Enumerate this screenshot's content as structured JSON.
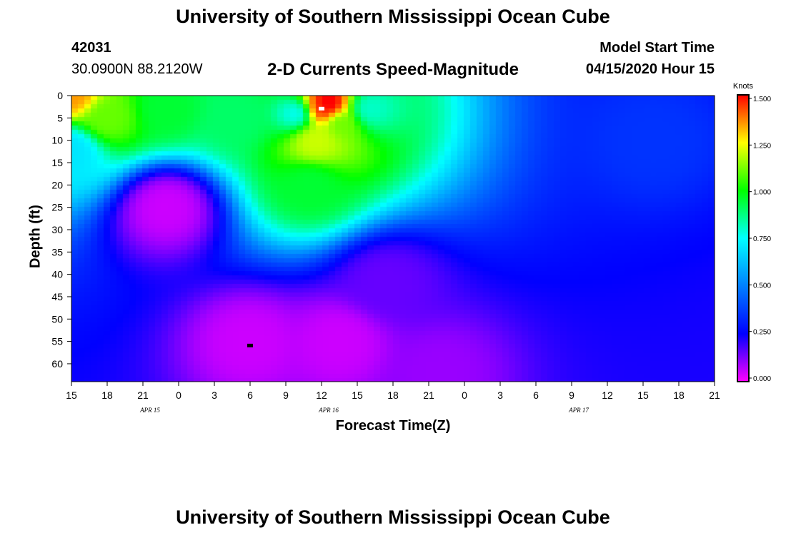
{
  "header": {
    "title_top": "University of Southern Mississippi Ocean Cube",
    "station_id": "42031",
    "location": "30.0900N 88.2120W",
    "subtitle": "2-D Currents Speed-Magnitude",
    "model_start_label": "Model Start Time",
    "model_start_value": "04/15/2020 Hour 15",
    "title_bottom": "University of Southern Mississippi Ocean Cube"
  },
  "chart_data": {
    "type": "heatmap",
    "title": "2-D Currents Speed-Magnitude",
    "xlabel": "Forecast Time(Z)",
    "ylabel": "Depth (ft)",
    "x_ticks": [
      "15",
      "18",
      "21",
      "0",
      "3",
      "6",
      "9",
      "12",
      "15",
      "18",
      "21",
      "0",
      "3",
      "6",
      "9",
      "12",
      "15",
      "18",
      "21"
    ],
    "x_range_hours": [
      0,
      54
    ],
    "y_ticks": [
      "0",
      "5",
      "10",
      "15",
      "20",
      "25",
      "30",
      "35",
      "40",
      "45",
      "50",
      "55",
      "60"
    ],
    "y_range": [
      0,
      64
    ],
    "day_labels": [
      {
        "label": "APR 15",
        "hour": 6
      },
      {
        "label": "APR 16",
        "hour": 21
      },
      {
        "label": "APR 17",
        "hour": 42
      }
    ],
    "colorbar": {
      "title": "Knots",
      "min": 0,
      "max": 1.5,
      "ticks": [
        "0.000",
        "0.250",
        "0.500",
        "0.750",
        "1.000",
        "1.250",
        "1.500"
      ],
      "stops": [
        {
          "v": 0.0,
          "color": "#ff00ff"
        },
        {
          "v": 0.25,
          "color": "#0000ff"
        },
        {
          "v": 0.75,
          "color": "#00ffff"
        },
        {
          "v": 1.0,
          "color": "#00ff00"
        },
        {
          "v": 1.25,
          "color": "#ffff00"
        },
        {
          "v": 1.5,
          "color": "#ff0000"
        }
      ]
    },
    "field_features": [
      {
        "t": 0,
        "d": 0,
        "v": 1.35
      },
      {
        "t": 0,
        "d": 12,
        "v": 0.7
      },
      {
        "t": 3,
        "d": 5,
        "v": 1.1
      },
      {
        "t": 8,
        "d": 3,
        "v": 0.95
      },
      {
        "t": 14,
        "d": 5,
        "v": 0.9
      },
      {
        "t": 19,
        "d": 4,
        "v": 0.75
      },
      {
        "t": 21,
        "d": 3,
        "v": 1.45
      },
      {
        "t": 21.5,
        "d": 2,
        "v": 1.55
      },
      {
        "t": 20.5,
        "d": 10,
        "v": 1.2
      },
      {
        "t": 22.5,
        "d": 6,
        "v": 1.1
      },
      {
        "t": 20,
        "d": 20,
        "v": 0.95
      },
      {
        "t": 25,
        "d": 3,
        "v": 0.8
      },
      {
        "t": 8,
        "d": 25,
        "v": 0.05
      },
      {
        "t": 15,
        "d": 55,
        "v": 0.05
      },
      {
        "t": 22.5,
        "d": 55,
        "v": 0.05
      },
      {
        "t": 26.5,
        "d": 42,
        "v": 0.15
      },
      {
        "t": 31,
        "d": 62,
        "v": 0.1
      },
      {
        "t": 49,
        "d": 10,
        "v": 0.35
      }
    ],
    "markers": [
      {
        "t": 21,
        "d": 3,
        "color": "#ffffff"
      },
      {
        "t": 15,
        "d": 56,
        "color": "#000000"
      }
    ]
  }
}
